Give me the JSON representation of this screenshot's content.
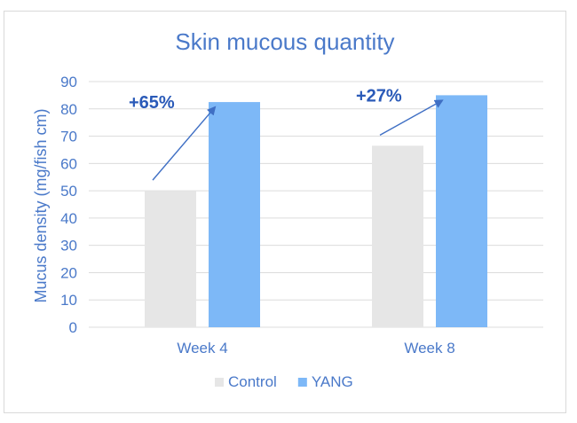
{
  "chart_data": {
    "type": "bar",
    "title": "Skin mucous quantity",
    "xlabel": "",
    "ylabel": "Mucus density (mg/fish cm)",
    "ylim": [
      0,
      90
    ],
    "yticks": [
      0,
      10,
      20,
      30,
      40,
      50,
      60,
      70,
      80,
      90
    ],
    "categories": [
      "Week 4",
      "Week 8"
    ],
    "series": [
      {
        "name": "Control",
        "values": [
          50,
          66.5
        ],
        "color": "#e6e6e6"
      },
      {
        "name": "YANG",
        "values": [
          82.5,
          85
        ],
        "color": "#7db8f7"
      }
    ],
    "annotations": [
      {
        "text": "+65%",
        "category": "Week 4"
      },
      {
        "text": "+27%",
        "category": "Week 8"
      }
    ],
    "grid": true,
    "legend": "bottom",
    "colors": {
      "axis_text": "#4a79c9",
      "annotation": "#2a5ab8",
      "arrow": "#3f6fc4"
    }
  }
}
